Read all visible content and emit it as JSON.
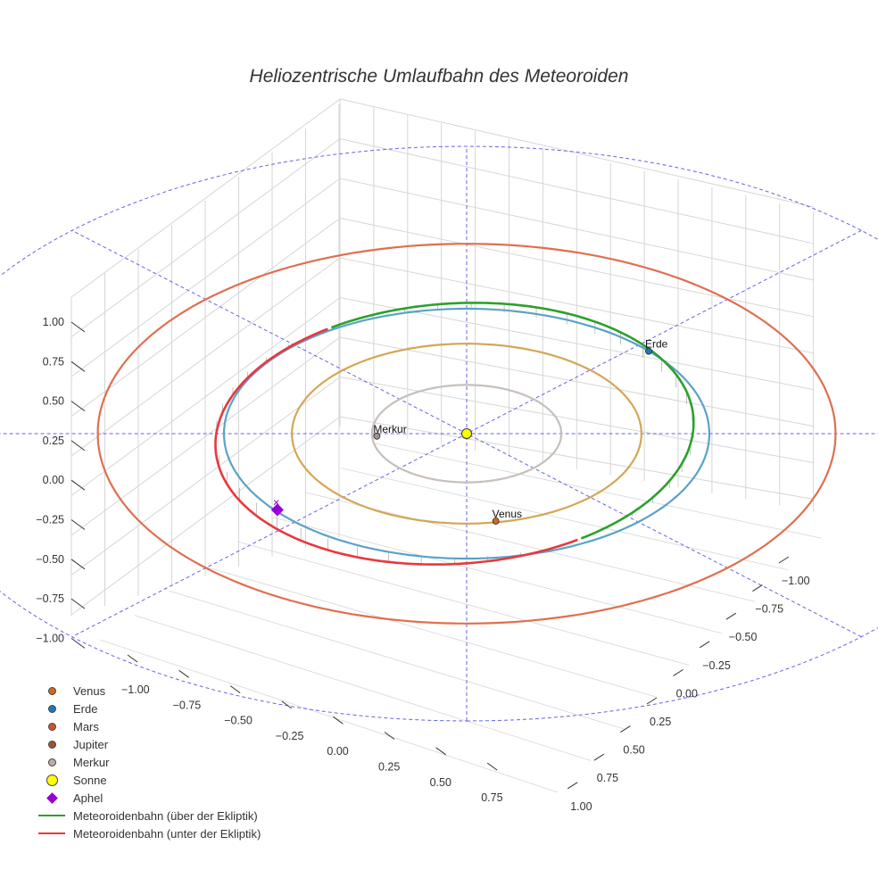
{
  "title": "Heliozentrische Umlaufbahn des Meteoroiden",
  "colors": {
    "venus": "#d4a655",
    "earth": "#5aa2c8",
    "mars": "#df6f4f",
    "jupiter": "#a0522d",
    "mercury": "#c7bfba",
    "sun": "#ffff00",
    "aphel": "#9400d3",
    "above": "#2ca02c",
    "below": "#e8383d",
    "guide": "#4a4ae0",
    "grid": "#d6d6d6"
  },
  "legend": [
    {
      "label": "Venus",
      "symbol": "dot",
      "color": "#d2691e"
    },
    {
      "label": "Erde",
      "symbol": "dot",
      "color": "#1f77b4"
    },
    {
      "label": "Mars",
      "symbol": "dot",
      "color": "#d2522a"
    },
    {
      "label": "Jupiter",
      "symbol": "dot",
      "color": "#a0522d"
    },
    {
      "label": "Merkur",
      "symbol": "dot",
      "color": "#c0aca6"
    },
    {
      "label": "Sonne",
      "symbol": "big-dot",
      "color": "#ffff00"
    },
    {
      "label": "Aphel",
      "symbol": "diamond",
      "color": "#9400d3"
    },
    {
      "label": "Meteoroidenbahn (über der Ekliptik)",
      "symbol": "line",
      "color": "#2ca02c"
    },
    {
      "label": "Meteoroidenbahn (unter der Ekliptik)",
      "symbol": "line",
      "color": "#e8383d"
    }
  ],
  "chart_data": {
    "type": "scatter3d",
    "title": "Heliozentrische Umlaufbahn des Meteoroiden",
    "x_ticks": [
      "−1.00",
      "−0.75",
      "−0.50",
      "−0.25",
      "0.00",
      "0.25",
      "0.50",
      "0.75"
    ],
    "y_ticks": [
      "−1.00",
      "−0.75",
      "−0.50",
      "−0.25",
      "0.00",
      "0.25",
      "0.50",
      "0.75",
      "1.00"
    ],
    "z_ticks": [
      "−1.00",
      "−0.75",
      "−0.50",
      "−0.25",
      "0.00",
      "0.25",
      "0.50",
      "0.75",
      "1.00"
    ],
    "orbits": [
      {
        "name": "Merkur",
        "radius": 0.39
      },
      {
        "name": "Venus",
        "radius": 0.72
      },
      {
        "name": "Erde",
        "radius": 1.0
      },
      {
        "name": "Mars",
        "radius": 1.52
      }
    ],
    "planets": [
      {
        "name": "Sonne",
        "label": "",
        "x": 0.0,
        "y": 0.0,
        "z": 0.0
      },
      {
        "name": "Merkur",
        "label": "Merkur",
        "x": 0.02,
        "y": -0.37,
        "z": 0.0
      },
      {
        "name": "Venus",
        "label": "Venus",
        "x": 0.7,
        "y": 0.12,
        "z": 0.0
      },
      {
        "name": "Erde",
        "label": "Erde",
        "x": -0.66,
        "y": 0.75,
        "z": 0.0
      }
    ],
    "aphel": {
      "x": 0.61,
      "y": -0.78,
      "z": 0.0
    },
    "meteoroid_orbit": {
      "a": 0.99,
      "b": 0.985,
      "center_x": 0.0,
      "center_y": 0.0,
      "max_z": 0.03
    },
    "reference_circle_radius": 2.3,
    "reference_line_angles_deg": [
      0,
      45,
      90,
      135
    ]
  }
}
